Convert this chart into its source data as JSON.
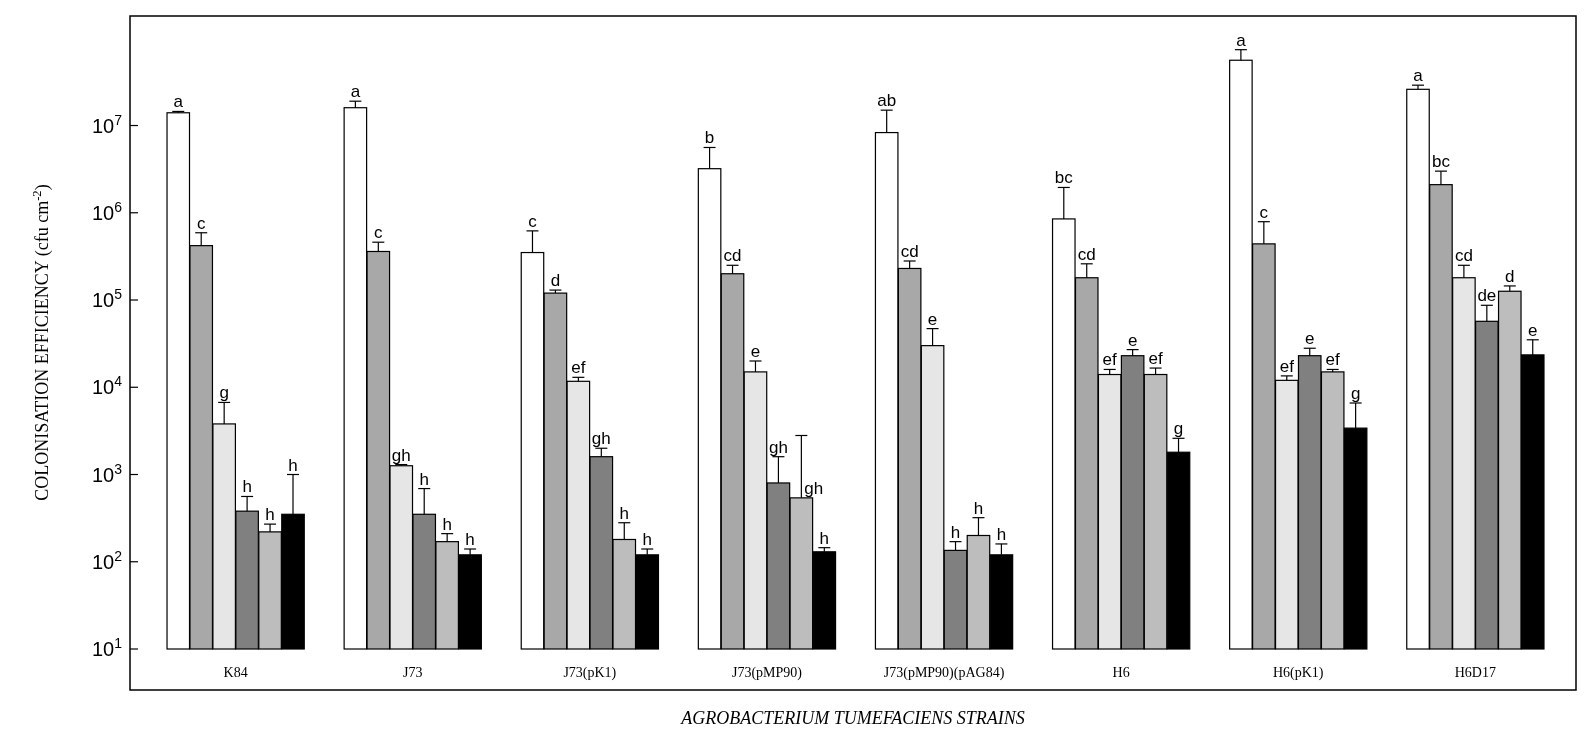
{
  "chart_data": {
    "type": "bar",
    "xlabel": "AGROBACTERIUM TUMEFACIENS STRAINS",
    "ylabel": "COLONISATION EFFICIENCY (cfu cm$^{-2}$)",
    "categories": [
      "K84",
      "J73",
      "J73(pK1)",
      "J73(pMP90)",
      "J73(pMP90)(pAG84)",
      "H6",
      "H6(pK1)",
      "H6D17"
    ],
    "log": true,
    "ylim": [
      10,
      180000000
    ],
    "yticks": [
      {
        "value": 10,
        "label": "10$^{1}$"
      },
      {
        "value": 100,
        "label": "10$^{2}$"
      },
      {
        "value": 1000,
        "label": "10$^{3}$"
      },
      {
        "value": 10000,
        "label": "10$^{4}$"
      },
      {
        "value": 100000,
        "label": "10$^{5}$"
      },
      {
        "value": 1000000,
        "label": "10$^{6}$"
      },
      {
        "value": 10000000,
        "label": "10$^{7}$"
      }
    ],
    "series": [
      {
        "color": "#ffffff",
        "values": [
          14000000,
          16000000,
          350000,
          3200000,
          8300000,
          850000,
          56000000,
          26000000
        ],
        "errors": [
          [
            14000000,
            14500000
          ],
          [
            16000000,
            19000000
          ],
          [
            350000,
            620000
          ],
          [
            3200000,
            5600000
          ],
          [
            8300000,
            15000000
          ],
          [
            850000,
            1950000
          ],
          [
            56000000,
            74000000
          ],
          [
            26000000,
            29000000
          ]
        ],
        "value_labels": [
          "a",
          "a",
          "c",
          "b",
          "ab",
          "bc",
          "a",
          "a"
        ]
      },
      {
        "color": "#a8a8a8",
        "values": [
          420000,
          360000,
          120000,
          200000,
          230000,
          180000,
          440000,
          2100000
        ],
        "errors": [
          [
            420000,
            590000
          ],
          [
            360000,
            460000
          ],
          [
            120000,
            130000
          ],
          [
            200000,
            250000
          ],
          [
            230000,
            280000
          ],
          [
            180000,
            260000
          ],
          [
            440000,
            790000
          ],
          [
            2100000,
            3000000
          ]
        ],
        "value_labels": [
          "c",
          "c",
          "d",
          "cd",
          "cd",
          "cd",
          "c",
          "bc"
        ]
      },
      {
        "color": "#e6e6e6",
        "values": [
          3800,
          1260,
          11700,
          15000,
          30000,
          14000,
          12000,
          180000
        ],
        "errors": [
          [
            3800,
            6700
          ],
          [
            1260,
            1300
          ],
          [
            11700,
            13000
          ],
          [
            15000,
            20000
          ],
          [
            30000,
            47000
          ],
          [
            14000,
            16000
          ],
          [
            12000,
            13500
          ],
          [
            180000,
            250000
          ]
        ],
        "value_labels": [
          "g",
          "gh",
          "ef",
          "e",
          "e",
          "ef",
          "ef",
          "cd"
        ]
      },
      {
        "color": "#808080",
        "values": [
          380,
          350,
          1600,
          800,
          135,
          23000,
          23000,
          57000
        ],
        "errors": [
          [
            380,
            560
          ],
          [
            350,
            690
          ],
          [
            1600,
            2000
          ],
          [
            800,
            1600
          ],
          [
            135,
            170
          ],
          [
            23000,
            27000
          ],
          [
            23000,
            28000
          ],
          [
            57000,
            87000
          ]
        ],
        "value_labels": [
          "h",
          "h",
          "gh",
          "gh",
          "h",
          "e",
          "e",
          "de"
        ]
      },
      {
        "color": "#bdbdbd",
        "values": [
          220,
          170,
          180,
          540,
          200,
          14000,
          15000,
          126000
        ],
        "errors": [
          [
            220,
            270
          ],
          [
            170,
            210
          ],
          [
            180,
            280
          ],
          [
            540,
            2800
          ],
          [
            200,
            320
          ],
          [
            14000,
            16600
          ],
          [
            15000,
            16000
          ],
          [
            126000,
            145000
          ]
        ],
        "value_labels": [
          "h",
          "h",
          "h",
          "gh",
          "h",
          "ef",
          "ef",
          "d"
        ]
      },
      {
        "color": "#000000",
        "values": [
          350,
          120,
          120,
          130,
          120,
          1800,
          3400,
          23500
        ],
        "errors": [
          [
            350,
            1000
          ],
          [
            120,
            140
          ],
          [
            120,
            140
          ],
          [
            130,
            145
          ],
          [
            120,
            160
          ],
          [
            1800,
            2600
          ],
          [
            3400,
            6600
          ],
          [
            23500,
            35000
          ]
        ],
        "value_labels": [
          "h",
          "h",
          "h",
          "h",
          "h",
          "g",
          "g",
          "e"
        ]
      }
    ]
  }
}
